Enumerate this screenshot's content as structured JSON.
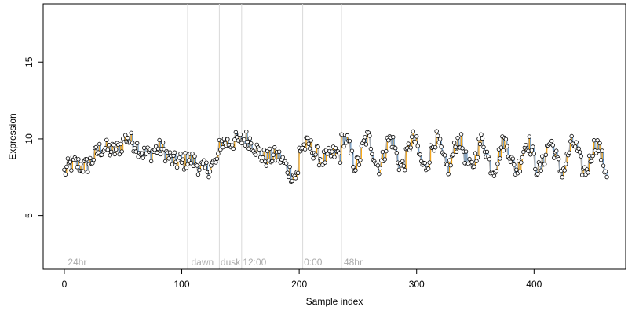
{
  "chart_data": {
    "type": "scatter",
    "title": "",
    "xlabel": "Sample index",
    "ylabel": "Expression",
    "xlim": [
      -18,
      478
    ],
    "ylim": [
      1.5,
      18.8
    ],
    "xticks": [
      0,
      100,
      200,
      300,
      400
    ],
    "yticks": [
      5,
      10,
      15
    ],
    "grid": false,
    "legend": "none",
    "colors": {
      "point_fill": "#ffffff",
      "point_stroke": "#000000",
      "up_segment": "#ffa500",
      "down_segment": "#6699cc",
      "trend_line": "#b0b0b0",
      "vline": "#d9d9d9",
      "annotation": "#aaaaaa"
    },
    "annotations": [
      {
        "x": 3,
        "label": "24hr"
      },
      {
        "x": 108,
        "label": "dawn"
      },
      {
        "x": 133,
        "label": "dusk"
      },
      {
        "x": 152,
        "label": "12:00"
      },
      {
        "x": 204,
        "label": "0:00"
      },
      {
        "x": 238,
        "label": "48hr"
      }
    ],
    "vlines": [
      105,
      132,
      151,
      203,
      236
    ],
    "points_visible_count": 463
  }
}
